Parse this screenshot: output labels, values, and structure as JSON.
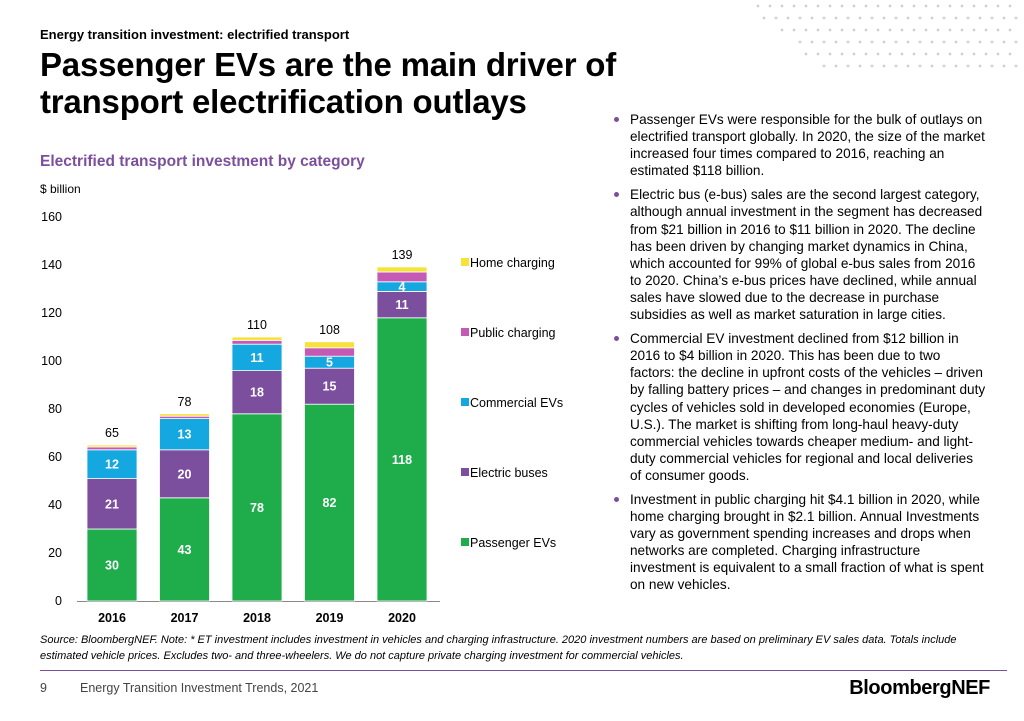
{
  "header": {
    "kicker": "Energy transition investment: electrified transport",
    "headline": "Passenger EVs are the main driver of transport electrification outlays"
  },
  "bullets": [
    "Passenger EVs were responsible for the bulk of outlays on electrified transport globally. In 2020, the size of the market increased four times compared to 2016, reaching an estimated $118 billion.",
    "Electric bus (e-bus) sales are the second largest category, although annual investment in the segment has decreased from $21 billion in 2016 to $11 billion in 2020. The decline has been driven by changing market dynamics in China, which accounted for 99% of global e-bus sales from 2016 to 2020. China’s e-bus prices have declined, while annual sales have slowed due to the decrease in purchase subsidies as well as market saturation in large cities.",
    "Commercial EV investment declined from $12 billion in 2016 to $4 billion in 2020. This has been due to two factors: the decline in upfront costs of the vehicles – driven by falling battery prices – and changes in predominant duty cycles of vehicles sold in developed economies (Europe, U.S.). The market is shifting from long-haul heavy-duty commercial vehicles towards cheaper medium- and light-duty commercial vehicles for regional and local deliveries of consumer goods.",
    "Investment in public charging hit $4.1 billion in 2020, while home charging brought in $2.1 billion. Annual Investments vary as government spending increases and drops when networks are completed. Charging infrastructure investment is equivalent to a small fraction of what is spent on new vehicles."
  ],
  "footer": {
    "source": "Source: BloombergNEF. Note: * ET investment includes investment in vehicles and charging infrastructure. 2020 investment numbers are based on preliminary EV sales data. Totals include estimated vehicle prices. Excludes two- and three-wheelers. We do not capture private charging investment for commercial vehicles.",
    "page_number": "9",
    "report": "Energy Transition Investment Trends, 2021",
    "logo": "BloombergNEF"
  },
  "chart_data": {
    "type": "bar",
    "stacked": true,
    "title": "Electrified transport investment by category",
    "ylabel": "$ billion",
    "xlabel": "",
    "categories": [
      "2016",
      "2017",
      "2018",
      "2019",
      "2020"
    ],
    "ylim": [
      0,
      160
    ],
    "yticks": [
      0,
      20,
      40,
      60,
      80,
      100,
      120,
      140,
      160
    ],
    "grid": false,
    "legend_position": "right",
    "totals": [
      65,
      78,
      110,
      108,
      139
    ],
    "series": [
      {
        "name": "Passenger EVs",
        "color": "#1fad4c",
        "values": [
          30,
          43,
          78,
          82,
          118
        ],
        "labels": [
          "30",
          "43",
          "78",
          "82",
          "118"
        ]
      },
      {
        "name": "Electric buses",
        "color": "#7b4f9d",
        "values": [
          21,
          20,
          18,
          15,
          11
        ],
        "labels": [
          "21",
          "20",
          "18",
          "15",
          "11"
        ]
      },
      {
        "name": "Commercial EVs",
        "color": "#14a7e0",
        "values": [
          12,
          13,
          11,
          5,
          4
        ],
        "labels": [
          "12",
          "13",
          "11",
          "5",
          "4"
        ]
      },
      {
        "name": "Public charging",
        "color": "#c45ab3",
        "values": [
          1.2,
          1.0,
          1.6,
          3.5,
          4.1
        ],
        "labels": [
          "",
          "",
          "",
          "",
          ""
        ]
      },
      {
        "name": "Home charging",
        "color": "#f7e23a",
        "values": [
          0.8,
          1.0,
          1.4,
          2.5,
          2.1
        ],
        "labels": [
          "",
          "",
          "",
          "",
          ""
        ]
      }
    ],
    "legend_order": [
      "Home charging",
      "Public charging",
      "Commercial EVs",
      "Electric buses",
      "Passenger EVs"
    ]
  }
}
